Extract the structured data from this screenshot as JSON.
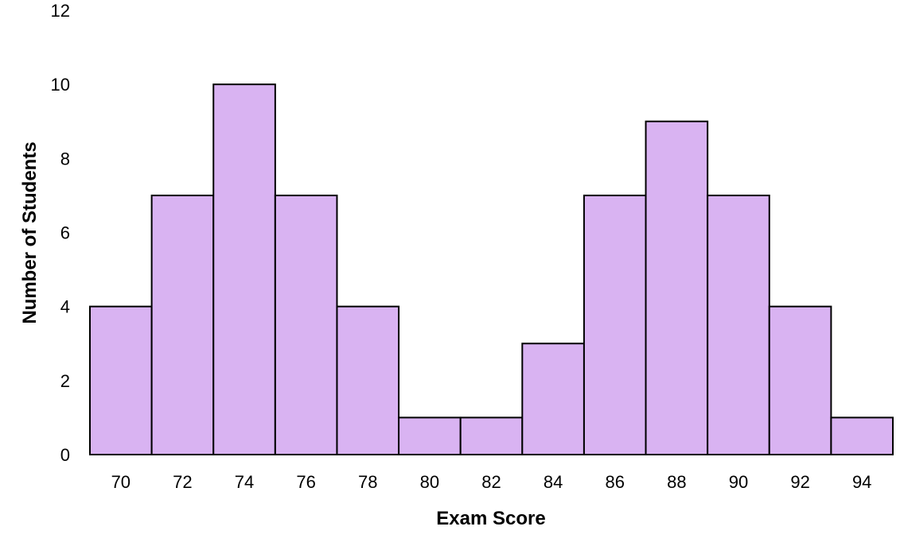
{
  "chart_data": {
    "type": "bar",
    "title": "",
    "xlabel": "Exam Score",
    "ylabel": "Number of Students",
    "categories": [
      "70",
      "72",
      "74",
      "76",
      "78",
      "80",
      "82",
      "84",
      "86",
      "88",
      "90",
      "92",
      "94"
    ],
    "values": [
      4,
      7,
      10,
      7,
      4,
      1,
      1,
      3,
      7,
      9,
      7,
      4,
      1
    ],
    "ylim": [
      0,
      12
    ],
    "yticks": [
      "0",
      "2",
      "4",
      "6",
      "8",
      "10",
      "12"
    ],
    "grid": false,
    "legend": "none",
    "bar_color": "#d9b3f2",
    "bar_edge_color": "#000000"
  }
}
